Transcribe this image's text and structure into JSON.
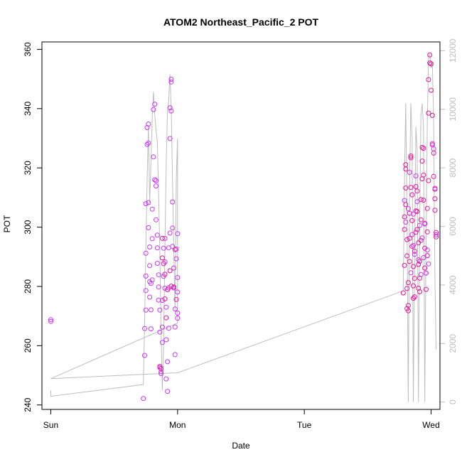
{
  "chart_data": {
    "type": "scatter",
    "title": "ATOM2 Northeast_Pacific_2 POT",
    "xlabel": "Date",
    "ylabel": "POT",
    "x_categories": [
      "Sun",
      "Mon",
      "Tue",
      "Wed"
    ],
    "xlim": [
      -0.07,
      3.07
    ],
    "ylim": [
      238.5,
      362.5
    ],
    "yticks": [
      240,
      260,
      280,
      300,
      320,
      340,
      360
    ],
    "y2lim": [
      -250,
      12300
    ],
    "y2ticks": [
      0,
      2000,
      4000,
      6000,
      8000,
      10000,
      12000
    ],
    "colors": {
      "points_a": "#cc33ff",
      "points_b": "#ee1199",
      "line": "#bdbdbd",
      "frame": "#000000",
      "right_axis": "#bdbdbd"
    },
    "series": [
      {
        "kind": "points",
        "color": "#cc33ff",
        "points": [
          [
            0.0,
            268.2
          ],
          [
            0.0,
            268.8
          ],
          [
            0.73,
            242.2
          ],
          [
            0.74,
            256.7
          ],
          [
            0.74,
            265.8
          ],
          [
            0.75,
            272.0
          ],
          [
            0.75,
            278.6
          ],
          [
            0.75,
            283.5
          ],
          [
            0.75,
            291.2
          ],
          [
            0.75,
            307.9
          ],
          [
            0.76,
            327.9
          ],
          [
            0.76,
            333.6
          ],
          [
            0.77,
            334.8
          ],
          [
            0.77,
            328.4
          ],
          [
            0.77,
            308.3
          ],
          [
            0.77,
            299.8
          ],
          [
            0.78,
            293.3
          ],
          [
            0.78,
            287.0
          ],
          [
            0.78,
            281.6
          ],
          [
            0.78,
            276.4
          ],
          [
            0.79,
            272.1
          ],
          [
            0.79,
            265.7
          ],
          [
            0.79,
            281.0
          ],
          [
            0.8,
            282.2
          ],
          [
            0.8,
            296.1
          ],
          [
            0.8,
            306.1
          ],
          [
            0.81,
            323.7
          ],
          [
            0.81,
            339.7
          ],
          [
            0.82,
            341.5
          ],
          [
            0.82,
            316.0
          ],
          [
            0.83,
            315.7
          ],
          [
            0.83,
            313.9
          ],
          [
            0.83,
            302.5
          ],
          [
            0.84,
            297.3
          ],
          [
            0.84,
            293.0
          ],
          [
            0.84,
            287.8
          ],
          [
            0.85,
            283.9
          ],
          [
            0.85,
            279.8
          ],
          [
            0.85,
            275.4
          ],
          [
            0.86,
            272.0
          ],
          [
            0.86,
            264.6
          ],
          [
            0.86,
            252.6
          ],
          [
            0.87,
            251.2
          ],
          [
            0.87,
            250.6
          ],
          [
            0.88,
            261.1
          ],
          [
            0.88,
            266.3
          ],
          [
            0.88,
            275.3
          ],
          [
            0.89,
            283.4
          ],
          [
            0.89,
            292.9
          ],
          [
            0.9,
            296.2
          ],
          [
            0.9,
            288.3
          ],
          [
            0.9,
            279.4
          ],
          [
            0.91,
            273.0
          ],
          [
            0.91,
            262.0
          ],
          [
            0.91,
            248.8
          ],
          [
            0.92,
            244.6
          ],
          [
            0.92,
            254.6
          ],
          [
            0.93,
            265.9
          ],
          [
            0.93,
            279.5
          ],
          [
            0.93,
            293.0
          ],
          [
            0.94,
            298.0
          ],
          [
            0.94,
            329.9
          ],
          [
            0.94,
            340.3
          ],
          [
            0.95,
            349.9
          ],
          [
            0.95,
            349.0
          ],
          [
            0.95,
            339.2
          ],
          [
            0.96,
            308.5
          ],
          [
            0.96,
            299.7
          ],
          [
            0.96,
            293.5
          ],
          [
            0.97,
            286.2
          ],
          [
            0.97,
            279.5
          ],
          [
            0.98,
            272.4
          ],
          [
            0.98,
            266.3
          ],
          [
            0.98,
            257.0
          ],
          [
            0.99,
            289.3
          ],
          [
            0.99,
            292.6
          ],
          [
            1.0,
            297.8
          ],
          [
            1.0,
            283.0
          ],
          [
            1.0,
            278.1
          ],
          [
            1.0,
            271.0
          ],
          [
            1.0,
            269.3
          ]
        ]
      },
      {
        "kind": "points",
        "color": "#ee1199",
        "points": [
          [
            0.86,
            253.0
          ],
          [
            0.87,
            252.3
          ],
          [
            0.88,
            296.2
          ],
          [
            0.88,
            289.6
          ],
          [
            0.89,
            287.7
          ],
          [
            0.9,
            284.1
          ],
          [
            0.9,
            275.8
          ],
          [
            0.91,
            269.4
          ],
          [
            0.92,
            278.9
          ],
          [
            0.94,
            285.3
          ],
          [
            0.95,
            280.1
          ],
          [
            0.97,
            279.8
          ],
          [
            0.98,
            292.4
          ],
          [
            0.99,
            275.6
          ],
          [
            2.78,
            277.8
          ],
          [
            2.79,
            287.1
          ],
          [
            2.79,
            299.2
          ],
          [
            2.79,
            303.5
          ],
          [
            2.8,
            319.6
          ],
          [
            2.8,
            321.1
          ],
          [
            2.8,
            313.2
          ],
          [
            2.8,
            307.6
          ],
          [
            2.81,
            295.8
          ],
          [
            2.81,
            290.3
          ],
          [
            2.81,
            279.3
          ],
          [
            2.81,
            272.5
          ],
          [
            2.82,
            271.8
          ],
          [
            2.82,
            273.6
          ],
          [
            2.82,
            281.3
          ],
          [
            2.83,
            288.4
          ],
          [
            2.83,
            296.2
          ],
          [
            2.83,
            304.7
          ],
          [
            2.84,
            313.4
          ],
          [
            2.84,
            323.4
          ],
          [
            2.84,
            324.0
          ],
          [
            2.85,
            310.9
          ],
          [
            2.85,
            302.2
          ],
          [
            2.85,
            293.5
          ],
          [
            2.86,
            286.7
          ],
          [
            2.86,
            280.2
          ],
          [
            2.86,
            276.0
          ],
          [
            2.87,
            276.5
          ],
          [
            2.87,
            282.7
          ],
          [
            2.87,
            291.9
          ],
          [
            2.88,
            298.3
          ],
          [
            2.88,
            305.5
          ],
          [
            2.88,
            313.7
          ],
          [
            2.89,
            312.2
          ],
          [
            2.89,
            305.3
          ],
          [
            2.89,
            299.2
          ],
          [
            2.9,
            294.7
          ],
          [
            2.9,
            287.4
          ],
          [
            2.9,
            279.4
          ],
          [
            2.91,
            278.2
          ],
          [
            2.91,
            282.8
          ],
          [
            2.91,
            288.5
          ],
          [
            2.92,
            295.5
          ],
          [
            2.92,
            302.5
          ],
          [
            2.92,
            309.3
          ],
          [
            2.93,
            316.3
          ],
          [
            2.93,
            322.3
          ],
          [
            2.93,
            326.9
          ],
          [
            2.94,
            326.6
          ],
          [
            2.94,
            317.6
          ],
          [
            2.94,
            309.1
          ],
          [
            2.95,
            301.3
          ],
          [
            2.95,
            292.9
          ],
          [
            2.95,
            286.2
          ],
          [
            2.96,
            279.0
          ],
          [
            2.96,
            284.5
          ],
          [
            2.97,
            290.4
          ],
          [
            2.97,
            298.4
          ],
          [
            2.97,
            306.3
          ],
          [
            2.98,
            315.7
          ],
          [
            2.98,
            338.5
          ],
          [
            2.98,
            349.8
          ],
          [
            2.99,
            358.1
          ],
          [
            2.99,
            355.4
          ],
          [
            3.0,
            355.1
          ],
          [
            3.0,
            346.2
          ],
          [
            3.01,
            337.7
          ],
          [
            3.01,
            327.8
          ],
          [
            3.02,
            325.0
          ],
          [
            3.02,
            317.1
          ],
          [
            3.03,
            312.8
          ],
          [
            3.03,
            309.6
          ],
          [
            3.03,
            305.7
          ],
          [
            3.04,
            298.2
          ],
          [
            3.04,
            296.7
          ]
        ]
      },
      {
        "kind": "points",
        "color": "#cc33ff",
        "points": [
          [
            2.79,
            309.0
          ],
          [
            2.8,
            301.7
          ],
          [
            2.82,
            306.2
          ],
          [
            2.83,
            318.5
          ],
          [
            2.84,
            284.6
          ],
          [
            2.85,
            297.5
          ],
          [
            2.86,
            293.8
          ],
          [
            2.86,
            304.4
          ],
          [
            2.87,
            290.8
          ],
          [
            2.88,
            317.3
          ],
          [
            2.89,
            308.6
          ],
          [
            2.9,
            289.0
          ],
          [
            2.91,
            300.6
          ],
          [
            2.92,
            284.0
          ],
          [
            2.93,
            296.4
          ],
          [
            2.94,
            289.7
          ],
          [
            2.95,
            301.1
          ],
          [
            2.96,
            284.5
          ],
          [
            2.97,
            292.3
          ],
          [
            2.98,
            287.6
          ],
          [
            3.01,
            328.2
          ],
          [
            3.02,
            326.4
          ],
          [
            3.03,
            313.1
          ],
          [
            3.04,
            297.4
          ]
        ]
      },
      {
        "kind": "line",
        "color": "#bdbdbd",
        "axis": "right",
        "points": [
          [
            0.0,
            400
          ],
          [
            0.0,
            200
          ],
          [
            0.73,
            600
          ],
          [
            0.74,
            2800
          ],
          [
            0.75,
            5200
          ],
          [
            0.76,
            7600
          ],
          [
            0.77,
            9400
          ],
          [
            0.78,
            6800
          ],
          [
            0.79,
            8200
          ],
          [
            0.8,
            9700
          ],
          [
            0.81,
            10600
          ],
          [
            0.82,
            9800
          ],
          [
            0.83,
            9300
          ],
          [
            0.84,
            8900
          ],
          [
            0.85,
            7200
          ],
          [
            0.86,
            5100
          ],
          [
            0.87,
            2500
          ],
          [
            0.88,
            400
          ],
          [
            0.89,
            2000
          ],
          [
            0.9,
            5200
          ],
          [
            0.91,
            8100
          ],
          [
            0.92,
            9900
          ],
          [
            0.93,
            10300
          ],
          [
            0.94,
            11200
          ],
          [
            0.95,
            10000
          ],
          [
            0.96,
            7600
          ],
          [
            0.97,
            5200
          ],
          [
            0.98,
            3100
          ],
          [
            0.99,
            7600
          ],
          [
            1.0,
            9000
          ],
          [
            1.0,
            3000
          ],
          [
            1.0,
            2700
          ],
          [
            0.0,
            800
          ],
          [
            1.0,
            1000
          ],
          [
            2.78,
            3800
          ],
          [
            2.79,
            7600
          ],
          [
            2.8,
            10200
          ],
          [
            2.81,
            6600
          ],
          [
            2.82,
            0
          ],
          [
            2.83,
            7200
          ],
          [
            2.84,
            10200
          ],
          [
            2.85,
            9000
          ],
          [
            2.86,
            0
          ],
          [
            2.87,
            4800
          ],
          [
            2.88,
            9400
          ],
          [
            2.89,
            8600
          ],
          [
            2.9,
            0
          ],
          [
            2.91,
            6000
          ],
          [
            2.92,
            9800
          ],
          [
            2.93,
            10200
          ],
          [
            2.94,
            9400
          ],
          [
            2.95,
            0
          ],
          [
            2.96,
            5400
          ],
          [
            2.97,
            9600
          ],
          [
            2.98,
            11800
          ],
          [
            2.99,
            11900
          ],
          [
            3.0,
            11400
          ],
          [
            3.01,
            11600
          ],
          [
            3.02,
            9600
          ],
          [
            3.03,
            4200
          ],
          [
            3.04,
            1800
          ]
        ]
      }
    ]
  }
}
